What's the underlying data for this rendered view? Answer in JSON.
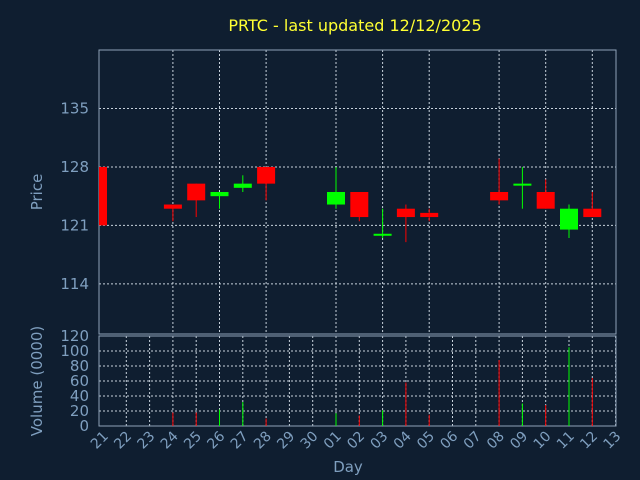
{
  "chart_data": {
    "type": "candlestick",
    "title": "PRTC - last updated 12/12/2025",
    "xlabel": "Day",
    "ylabel_price": "Price",
    "ylabel_volume": "Volume (0000)",
    "price_ticks": [
      114,
      121,
      128,
      135
    ],
    "price_ylim": [
      108,
      142
    ],
    "volume_ticks": [
      0,
      20,
      40,
      60,
      80,
      100,
      120
    ],
    "volume_ylim": [
      0,
      120
    ],
    "grid": true,
    "colors": {
      "up": "#00ff00",
      "down": "#ff0000",
      "title": "#ffff33",
      "axis_text": "#7f9fbf"
    },
    "categories": [
      "21",
      "22",
      "23",
      "24",
      "25",
      "26",
      "27",
      "28",
      "29",
      "30",
      "01",
      "02",
      "03",
      "04",
      "05",
      "06",
      "07",
      "08",
      "09",
      "10",
      "11",
      "12",
      "13"
    ],
    "candles": [
      {
        "day": "21",
        "open": 128,
        "high": 128,
        "low": 121,
        "close": 121,
        "volume": 0
      },
      {
        "day": "24",
        "open": 123.5,
        "high": 123.5,
        "low": 121.5,
        "close": 123,
        "volume": 18
      },
      {
        "day": "25",
        "open": 126,
        "high": 126,
        "low": 122,
        "close": 124,
        "volume": 18
      },
      {
        "day": "26",
        "open": 124.5,
        "high": 125,
        "low": 123,
        "close": 125,
        "volume": 22
      },
      {
        "day": "27",
        "open": 125.5,
        "high": 127,
        "low": 125,
        "close": 126,
        "volume": 32
      },
      {
        "day": "28",
        "open": 128,
        "high": 128,
        "low": 124,
        "close": 126,
        "volume": 10
      },
      {
        "day": "01",
        "open": 123.5,
        "high": 128,
        "low": 123,
        "close": 125,
        "volume": 17
      },
      {
        "day": "02",
        "open": 125,
        "high": 125,
        "low": 121.5,
        "close": 122,
        "volume": 14
      },
      {
        "day": "03",
        "open": 120,
        "high": 123,
        "low": 119.5,
        "close": 120,
        "volume": 21
      },
      {
        "day": "04",
        "open": 123,
        "high": 123.5,
        "low": 119,
        "close": 122,
        "volume": 58
      },
      {
        "day": "05",
        "open": 122.5,
        "high": 123,
        "low": 121.5,
        "close": 122,
        "volume": 15
      },
      {
        "day": "08",
        "open": 125,
        "high": 129,
        "low": 123.5,
        "close": 124,
        "volume": 88
      },
      {
        "day": "09",
        "open": 126,
        "high": 128,
        "low": 123,
        "close": 126,
        "volume": 30
      },
      {
        "day": "10",
        "open": 125,
        "high": 126.5,
        "low": 123,
        "close": 123,
        "volume": 28
      },
      {
        "day": "11",
        "open": 120.5,
        "high": 123.5,
        "low": 119.5,
        "close": 123,
        "volume": 105
      },
      {
        "day": "12",
        "open": 123,
        "high": 125,
        "low": 122,
        "close": 122,
        "volume": 64
      }
    ]
  }
}
